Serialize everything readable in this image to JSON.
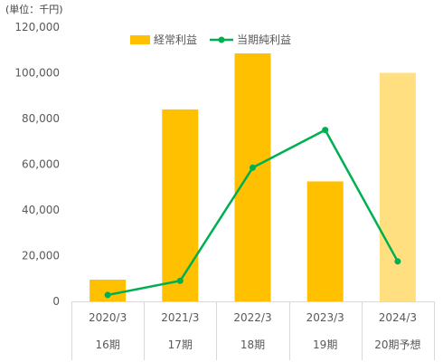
{
  "unit_label": "(単位：千円)",
  "chart_data": {
    "type": "bar+line",
    "categories": [
      "2020/3",
      "2021/3",
      "2022/3",
      "2023/3",
      "2024/3"
    ],
    "period_labels": [
      "16期",
      "17期",
      "18期",
      "19期",
      "20期予想"
    ],
    "yticks": [
      "0",
      "20,000",
      "40,000",
      "60,000",
      "80,000",
      "100,000",
      "120,000"
    ],
    "ylim": [
      0,
      120000
    ],
    "series": [
      {
        "name": "経常利益",
        "kind": "bar",
        "values": [
          9500,
          84000,
          108500,
          52500,
          100000
        ],
        "color": "#FFC000",
        "forecast_color": "#FFDF7F",
        "forecast_index": 4
      },
      {
        "name": "当期純利益",
        "kind": "line",
        "values": [
          2800,
          9000,
          58500,
          75000,
          17500
        ],
        "color": "#00B050"
      }
    ],
    "legend_position": "top-center",
    "grid": false
  }
}
